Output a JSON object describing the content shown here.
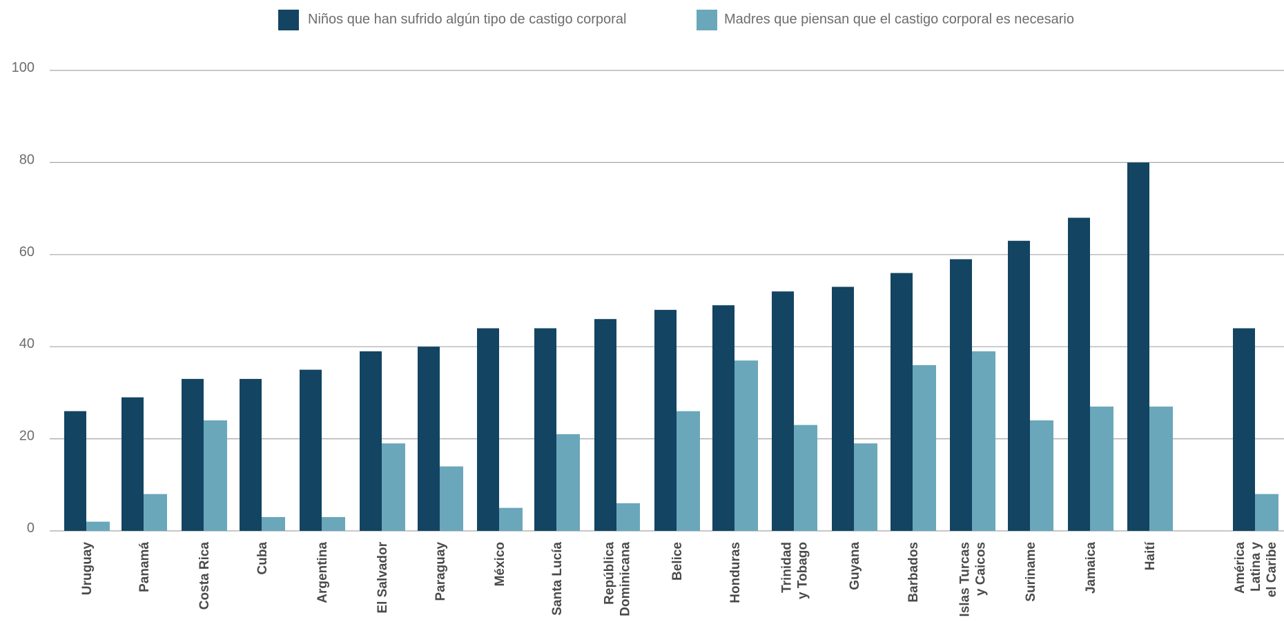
{
  "chart_data": {
    "type": "bar",
    "categories": [
      [
        "Uruguay"
      ],
      [
        "Panamá"
      ],
      [
        "Costa Rica"
      ],
      [
        "Cuba"
      ],
      [
        "Argentina"
      ],
      [
        "El Salvador"
      ],
      [
        "Paraguay"
      ],
      [
        "México"
      ],
      [
        "Santa Lucía"
      ],
      [
        "República",
        "Dominicana"
      ],
      [
        "Belice"
      ],
      [
        "Honduras"
      ],
      [
        "Trinidad",
        "y Tobago"
      ],
      [
        "Guyana"
      ],
      [
        "Barbados"
      ],
      [
        "Islas Turcas",
        "y Caicos"
      ],
      [
        "Suriname"
      ],
      [
        "Jamaica"
      ],
      [
        "Haití"
      ],
      [
        "América",
        "Latina y",
        "el Caribe"
      ]
    ],
    "series": [
      {
        "name": "Niños que han sufrido algún tipo de castigo corporal",
        "color": "#134462",
        "values": [
          26,
          29,
          33,
          33,
          35,
          39,
          40,
          44,
          44,
          46,
          48,
          49,
          52,
          53,
          56,
          59,
          63,
          68,
          80,
          44
        ]
      },
      {
        "name": "Madres que piensan que el castigo corporal es necesario",
        "color": "#6aa7bb",
        "values": [
          2,
          8,
          24,
          3,
          3,
          19,
          14,
          5,
          21,
          6,
          26,
          37,
          23,
          19,
          36,
          39,
          24,
          27,
          27,
          8
        ]
      }
    ],
    "yticks": [
      "0",
      "20",
      "40",
      "60",
      "80",
      "100"
    ],
    "ylim": [
      0,
      100
    ],
    "grid": true,
    "legend_position": "top"
  }
}
